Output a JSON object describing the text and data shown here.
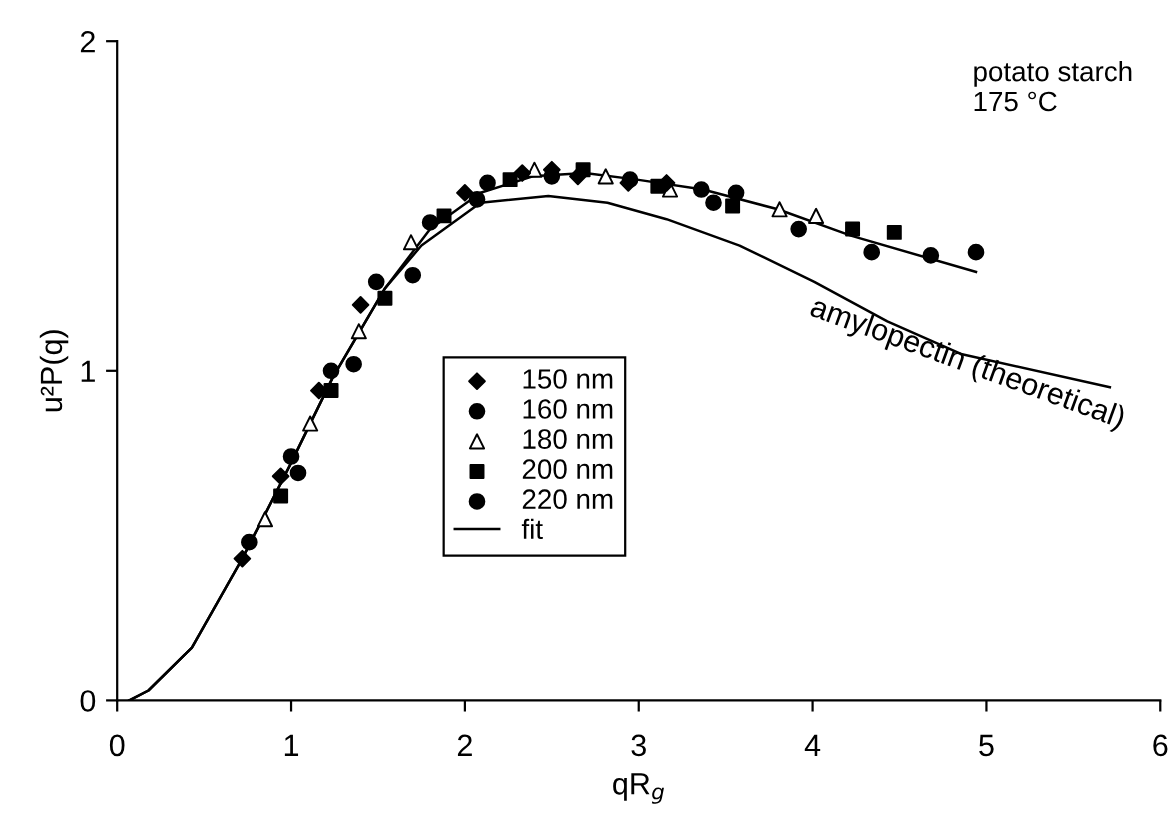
{
  "chart_data": {
    "type": "scatter",
    "xlabel": "qR$_{g}$",
    "ylabel": "u²P(q)",
    "xlim": [
      0,
      6
    ],
    "ylim": [
      0,
      2
    ],
    "xticks": [
      0,
      1,
      2,
      3,
      4,
      5,
      6
    ],
    "yticks": [
      0,
      1,
      2
    ],
    "grid": false,
    "legend": "center",
    "annotations": [
      "potato starch\n175 °C",
      "amylopectin (theoretical)"
    ],
    "series": [
      {
        "name": "150 nm",
        "color": "#000000",
        "marker": "diamond",
        "x": [
          0.72,
          0.94,
          1.16,
          1.4,
          2.0,
          2.33,
          2.5,
          2.65,
          2.94,
          3.16
        ],
        "values": [
          0.43,
          0.68,
          0.94,
          1.2,
          1.54,
          1.6,
          1.61,
          1.59,
          1.57,
          1.57
        ]
      },
      {
        "name": "160 nm",
        "color": "#000000",
        "marker": "circle",
        "x": [
          0.76,
          1.0,
          1.23,
          1.49,
          1.8,
          2.13,
          2.5,
          2.95,
          3.36,
          3.56,
          3.92,
          4.68
        ],
        "values": [
          0.48,
          0.74,
          1.0,
          1.27,
          1.45,
          1.57,
          1.59,
          1.58,
          1.55,
          1.54,
          1.43,
          1.35
        ]
      },
      {
        "name": "180 nm",
        "color": "#000000",
        "marker": "triangle",
        "x": [
          0.85,
          1.11,
          1.39,
          1.69,
          2.4,
          2.81,
          3.18,
          3.81,
          4.02
        ],
        "values": [
          0.55,
          0.84,
          1.12,
          1.39,
          1.61,
          1.59,
          1.55,
          1.49,
          1.47
        ]
      },
      {
        "name": "200 nm",
        "color": "#000000",
        "marker": "square",
        "x": [
          0.94,
          1.23,
          1.54,
          1.88,
          2.26,
          2.68,
          3.11,
          3.54,
          4.23,
          4.47
        ],
        "values": [
          0.62,
          0.94,
          1.22,
          1.47,
          1.58,
          1.61,
          1.56,
          1.5,
          1.43,
          1.42
        ]
      },
      {
        "name": "220 nm",
        "color": "#000000",
        "marker": "circle",
        "x": [
          1.04,
          1.36,
          1.7,
          2.07,
          3.43,
          4.34,
          4.94
        ],
        "values": [
          0.69,
          1.02,
          1.29,
          1.52,
          1.51,
          1.36,
          1.36
        ]
      },
      {
        "name": "fit",
        "type": "line",
        "color": "#000000",
        "line_style": "solid",
        "x": [
          0.07,
          0.18,
          0.43,
          0.72,
          0.99,
          1.24,
          1.54,
          1.8,
          2.09,
          2.39,
          2.69,
          2.99,
          3.37,
          3.8,
          4.22,
          4.94
        ],
        "values": [
          0,
          0.03,
          0.16,
          0.43,
          0.71,
          0.98,
          1.25,
          1.43,
          1.54,
          1.59,
          1.6,
          1.58,
          1.55,
          1.49,
          1.41,
          1.3
        ]
      },
      {
        "type": "line",
        "color": "#000000",
        "line_style": "solid",
        "x": [
          0.07,
          0.18,
          0.43,
          0.72,
          0.99,
          1.24,
          1.54,
          1.75,
          2.09,
          2.48,
          2.82,
          3.16,
          3.58,
          4.01,
          4.43,
          4.86,
          5.71
        ],
        "values": [
          0,
          0.03,
          0.16,
          0.43,
          0.71,
          0.98,
          1.25,
          1.38,
          1.51,
          1.53,
          1.51,
          1.46,
          1.38,
          1.27,
          1.15,
          1.05,
          0.95
        ]
      }
    ]
  }
}
